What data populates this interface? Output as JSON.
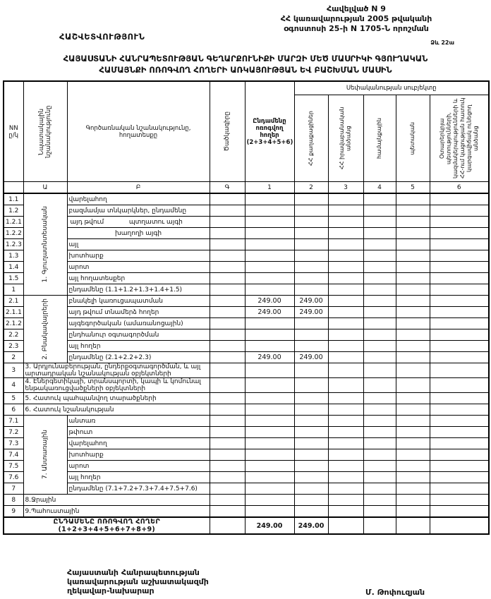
{
  "page": {
    "appendix_lines": [
      "Հավելված N 9",
      "ՀՀ կառավարության 2005 թվականի",
      "օգոստոսի 25-ի N 1705-Ն որոշման"
    ],
    "report_label": "ՀԱՇՎԵՏՎՈՒԹՅՈՒՆ",
    "form_label": "Ձև 22ա",
    "title_lines": [
      "ՀԱՅԱՍՏԱՆԻ ՀԱՆՐԱՊԵՏՈՒԹՅԱՆ ԳԵՂԱՐՔՈՒՆԻՔԻ ՄԱՐԶԻ ՄԵԾ ՄԱՍՐԻԿԻ ԳՅՈՒՂԱԿԱՆ",
      "ՀԱՄԱՅՆՔԻ ՈՌՈԳՎՈՂ ՀՈՂԵՐԻ ԱՌԿԱՅՈՒԹՅԱՆ ԵՎ ԲԱՇԽՄԱՆ ՄԱՍԻՆ"
    ]
  },
  "table": {
    "headers": {
      "row_no": "NN ը/կ",
      "purpose": "Նպատակային նշանակությունը",
      "functional": "Գործառնական նշանակությունը, հողատեսքը",
      "code": "Ծածկագիրը",
      "total": "Ընդամենը ոռոգվող հողեր (2+3+4+5+6)",
      "ownership_group": "Սեփականության սուբյեկտը",
      "ownership": [
        "ՀՀ քաղաքացիներ",
        "ՀՀ իրավաբանական անձանց",
        "համայնքային",
        "պետական",
        "Օտարերկրյա պետությունների, կազմակերպությունների և ՀՀ-ում կացության հատուկ կարգավիճակ ունեցող անձանց"
      ]
    },
    "letters_row": [
      "",
      "Ա",
      "Բ",
      "Գ",
      "1",
      "2",
      "3",
      "4",
      "5",
      "6"
    ],
    "rows": [
      {
        "no": "1.1",
        "group": {
          "label": "1. Գյուղատնտեսական",
          "span": 9
        },
        "label": "վարելահող",
        "values": [
          "",
          "",
          "",
          "",
          "",
          ""
        ]
      },
      {
        "no": "1.2",
        "label": "բազմամյա տնկարկներ, ընդամենը",
        "values": [
          "",
          "",
          "",
          "",
          "",
          ""
        ]
      },
      {
        "no": "1.2.1",
        "prefix": "այդ թվում",
        "label": "պտղատու այգի",
        "values": [
          "",
          "",
          "",
          "",
          "",
          ""
        ]
      },
      {
        "no": "1.2.2",
        "label": "խաղողի այգի",
        "center": true,
        "values": [
          "",
          "",
          "",
          "",
          "",
          ""
        ]
      },
      {
        "no": "1.2.3",
        "label": "այլ",
        "values": [
          "",
          "",
          "",
          "",
          "",
          ""
        ]
      },
      {
        "no": "1.3",
        "label": "խոտհարք",
        "values": [
          "",
          "",
          "",
          "",
          "",
          ""
        ]
      },
      {
        "no": "1.4",
        "label": "արոտ",
        "values": [
          "",
          "",
          "",
          "",
          "",
          ""
        ]
      },
      {
        "no": "1.5",
        "label": "այլ հողատեսքեր",
        "values": [
          "",
          "",
          "",
          "",
          "",
          ""
        ]
      },
      {
        "no": "1",
        "label": "ընդամենը (1.1+1.2+1.3+1.4+1.5)",
        "values": [
          "",
          "",
          "",
          "",
          "",
          ""
        ]
      },
      {
        "no": "2.1",
        "group": {
          "label": "2. Բնակավայրերի",
          "span": 6
        },
        "label": "բնակելի կառուցապատման",
        "values": [
          "249.00",
          "249.00",
          "",
          "",
          "",
          ""
        ]
      },
      {
        "no": "2.1.1",
        "label": "այդ թվում տնամերձ հողեր",
        "values": [
          "249.00",
          "249.00",
          "",
          "",
          "",
          ""
        ]
      },
      {
        "no": "2.1.2",
        "label": "այգեգործական (ամառանոցային)",
        "values": [
          "",
          "",
          "",
          "",
          "",
          ""
        ]
      },
      {
        "no": "2.2",
        "label": "ընդհանուր օգտագործման",
        "values": [
          "",
          "",
          "",
          "",
          "",
          ""
        ]
      },
      {
        "no": "2.3",
        "label": "այլ հողեր",
        "values": [
          "",
          "",
          "",
          "",
          "",
          ""
        ]
      },
      {
        "no": "2",
        "label": "ընդամենը (2.1+2.2+2.3)",
        "values": [
          "249.00",
          "249.00",
          "",
          "",
          "",
          ""
        ]
      },
      {
        "no": "3",
        "merge": true,
        "label": "3. Արդյունաբերության, ընդերքօգտագործման, և այլ արտադրական նշանակության օբյեկտների",
        "values": [
          "",
          "",
          "",
          "",
          "",
          ""
        ]
      },
      {
        "no": "4",
        "merge": true,
        "label": "4. Էներգետիկայի, տրանսպորտի, կապի և կոմունալ ենթակառուցվածքների օբյեկտների",
        "values": [
          "",
          "",
          "",
          "",
          "",
          ""
        ]
      },
      {
        "no": "5",
        "merge": true,
        "label": "5. Հատուկ պահպանվող տարածքների",
        "values": [
          "",
          "",
          "",
          "",
          "",
          ""
        ]
      },
      {
        "no": "6",
        "merge": true,
        "label": "6. Հատուկ նշանակության",
        "values": [
          "",
          "",
          "",
          "",
          "",
          ""
        ]
      },
      {
        "no": "7.1",
        "group": {
          "label": "7. Անտառային",
          "span": 7
        },
        "label": "անտառ",
        "values": [
          "",
          "",
          "",
          "",
          "",
          ""
        ]
      },
      {
        "no": "7.2",
        "label": "թփուտ",
        "values": [
          "",
          "",
          "",
          "",
          "",
          ""
        ]
      },
      {
        "no": "7.3",
        "label": "վարելահող",
        "values": [
          "",
          "",
          "",
          "",
          "",
          ""
        ]
      },
      {
        "no": "7.4",
        "label": "խոտհարք",
        "values": [
          "",
          "",
          "",
          "",
          "",
          ""
        ]
      },
      {
        "no": "7.5",
        "label": "արոտ",
        "values": [
          "",
          "",
          "",
          "",
          "",
          ""
        ]
      },
      {
        "no": "7.6",
        "label": "այլ հողեր",
        "values": [
          "",
          "",
          "",
          "",
          "",
          ""
        ]
      },
      {
        "no": "7",
        "label": "ընդամենը (7.1+7.2+7.3+7.4+7.5+7.6)",
        "values": [
          "",
          "",
          "",
          "",
          "",
          ""
        ]
      },
      {
        "no": "8",
        "merge": true,
        "label": "8.Ջրային",
        "values": [
          "",
          "",
          "",
          "",
          "",
          ""
        ]
      },
      {
        "no": "9",
        "merge": true,
        "label": "9.Պահուստային",
        "values": [
          "",
          "",
          "",
          "",
          "",
          ""
        ]
      }
    ],
    "total_row": {
      "label": "ԸՆԴԱՄԵՆԸ ՈՌՈԳՎՈՂ ՀՈՂԵՐ (1+2+3+4+5+6+7+8+9)",
      "values": [
        "249.00",
        "249.00",
        "",
        "",
        "",
        ""
      ]
    }
  },
  "footer": {
    "office_lines": [
      "Հայաստանի Հանրապետության",
      "կառավարության աշխատակազմի",
      "ղեկավար-նախարար"
    ],
    "signatory": "Մ. Թոփուզյան"
  }
}
